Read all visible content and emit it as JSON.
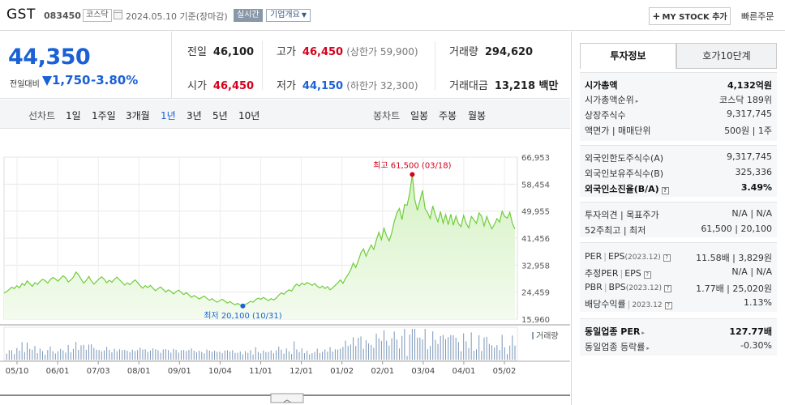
{
  "header": {
    "stock_name": "GST",
    "stock_code": "083450",
    "market": "코스닥",
    "as_of": "2024.05.10  기준(장마감)",
    "realtime": "실시간",
    "company_info": "기업개요",
    "mystock": "MY STOCK 추가",
    "quick_order": "빠른주문"
  },
  "price": {
    "current": "44,350",
    "diff_label": "전일대비",
    "diff": "1,750",
    "rate": "-3.80%",
    "prev_close_label": "전일",
    "prev_close": "46,100",
    "high_label": "고가",
    "high": "46,450",
    "upper_limit": "(상한가 59,900)",
    "volume_label": "거래량",
    "volume": "294,620",
    "open_label": "시가",
    "open": "46,450",
    "low_label": "저가",
    "low": "44,150",
    "lower_limit": "(하한가 32,300)",
    "amount_label": "거래대금",
    "amount": "13,218 백만"
  },
  "periods": {
    "line_label": "선차트",
    "line_options": [
      "1일",
      "1주일",
      "3개월",
      "1년",
      "3년",
      "5년",
      "10년"
    ],
    "active": "1년",
    "candle_label": "봉차트",
    "candle_options": [
      "일봉",
      "주봉",
      "월봉"
    ]
  },
  "chart_data": {
    "type": "area",
    "period": "1년",
    "x_tick_labels": [
      "05/10",
      "06/01",
      "07/03",
      "08/01",
      "09/01",
      "10/04",
      "11/01",
      "12/01",
      "01/02",
      "02/01",
      "03/04",
      "04/01",
      "05/02"
    ],
    "ylim": [
      15960,
      66953
    ],
    "y_tick_labels": [
      "66,953",
      "58,454",
      "49,955",
      "41,456",
      "32,958",
      "24,459",
      "15,960"
    ],
    "series": [
      {
        "values": [
          24200,
          24600,
          25300,
          26000,
          25600,
          26500,
          25800,
          27200,
          26600,
          28000,
          27100,
          26300,
          27400,
          26900,
          27800,
          28500,
          28100,
          27300,
          28400,
          29100,
          28600,
          27900,
          28800,
          29600,
          29000,
          27700,
          28300,
          29200,
          30800,
          29900,
          28600,
          27300,
          28100,
          29400,
          28000,
          27000,
          27800,
          28600,
          29300,
          28500,
          27400,
          28200,
          27600,
          28500,
          29200,
          28300,
          27500,
          26700,
          27400,
          26800,
          27600,
          28300,
          27500,
          26500,
          25700,
          26500,
          25900,
          26600,
          25700,
          24900,
          25600,
          26100,
          25300,
          24500,
          25200,
          24700,
          23900,
          24600,
          25100,
          24400,
          23700,
          24300,
          23600,
          22800,
          23400,
          22900,
          22300,
          22800,
          23200,
          22500,
          21900,
          22400,
          21800,
          21300,
          21800,
          22200,
          21600,
          21000,
          21500,
          20900,
          20500,
          20900,
          20400,
          20100,
          20600,
          21000,
          21600,
          21300,
          22100,
          22600,
          22200,
          22800,
          22300,
          21800,
          22400,
          22000,
          22600,
          23500,
          24200,
          23800,
          24600,
          25200,
          24800,
          26200,
          27000,
          26400,
          27300,
          26800,
          27500,
          27100,
          26600,
          27200,
          26300,
          25800,
          26400,
          25600,
          26200,
          25200,
          25800,
          26600,
          27400,
          28300,
          27200,
          28800,
          30000,
          31400,
          33600,
          32200,
          34400,
          36900,
          38100,
          35800,
          37600,
          39300,
          37900,
          40800,
          43300,
          41000,
          44600,
          42200,
          40600,
          43100,
          46700,
          49400,
          50800,
          47300,
          52000,
          51800,
          55600,
          61500,
          53600,
          50200,
          53400,
          56500,
          50700,
          49400,
          47600,
          51600,
          48700,
          46600,
          49800,
          46200,
          48900,
          45700,
          49000,
          45500,
          48400,
          46000,
          45100,
          48600,
          46100,
          44700,
          48300,
          47300,
          46100,
          49400,
          48400,
          45300,
          48300,
          46200,
          44400,
          45800,
          47600,
          46500,
          49900,
          48300,
          47800,
          49600,
          46100,
          44350
        ],
        "min_label": "최저 20,100 (10/31)",
        "max_label": "최고 61,500 (03/18)"
      }
    ],
    "volume_label": "거래량",
    "grid": true
  },
  "panel": {
    "tab_active": "투자정보",
    "tab_inactive": "호가10단계",
    "rows1": [
      {
        "k": "시가총액",
        "v": "4,132억원"
      },
      {
        "k": "시가총액순위",
        "v": "코스닥 189위"
      },
      {
        "k": "상장주식수",
        "v": "9,317,745"
      },
      {
        "k": "액면가 | 매매단위",
        "v": "500원 | 1주"
      }
    ],
    "rows2": [
      {
        "k": "외국인한도주식수(A)",
        "v": "9,317,745"
      },
      {
        "k": "외국인보유주식수(B)",
        "v": "325,336"
      },
      {
        "k": "외국인소진율(B/A)",
        "v": "3.49%"
      }
    ],
    "rows3": [
      {
        "k": "투자의견 | 목표주가",
        "v": "N/A | N/A"
      },
      {
        "k": "52주최고 | 최저",
        "v": "61,500 | 20,100"
      }
    ],
    "rows4": [
      {
        "k": "PER",
        "k2": "EPS",
        "ksub": "(2023.12)",
        "v": "11.58배 | 3,829원"
      },
      {
        "k": "추정PER",
        "k2": "EPS",
        "v": "N/A | N/A"
      },
      {
        "k": "PBR",
        "k2": "BPS",
        "ksub": "(2023.12)",
        "v": "1.77배 | 25,020원"
      },
      {
        "k": "배당수익률",
        "ksub": "2023.12",
        "v": "1.13%"
      }
    ],
    "rows5": [
      {
        "k": "동일업종 PER",
        "v": "127.77배"
      },
      {
        "k": "동일업종 등락률",
        "v": "-0.30%"
      }
    ]
  }
}
